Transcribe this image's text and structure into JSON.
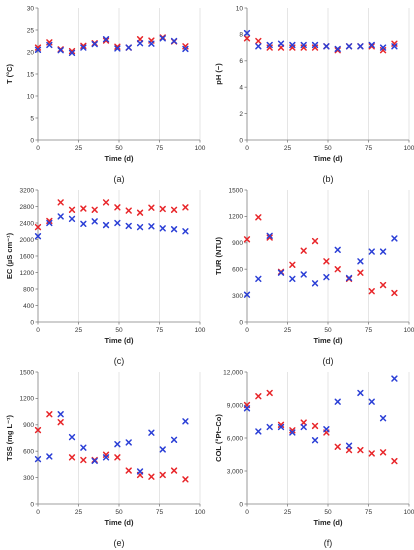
{
  "colors": {
    "red": "#e8262a",
    "blue": "#2b3fd6",
    "grid": "#d4d4d4",
    "axis": "#7f7f7f"
  },
  "chart_data": [
    {
      "type": "scatter",
      "caption": "(a)",
      "xlabel": "Time (d)",
      "ylabel": "T (°C)",
      "xlim": [
        0,
        100
      ],
      "ylim": [
        0,
        30
      ],
      "xticks": [
        0,
        25,
        50,
        75,
        100
      ],
      "yticks": [
        0,
        5,
        10,
        15,
        20,
        25,
        30
      ],
      "ytick_labels": [
        "0",
        "5",
        "10",
        "15",
        "20",
        "25",
        "30"
      ],
      "grid": "vertical",
      "series": [
        {
          "color": "red",
          "x": [
            0,
            7,
            14,
            21,
            28,
            35,
            42,
            49,
            56,
            63,
            70,
            77,
            84,
            91
          ],
          "y": [
            21.0,
            22.2,
            20.6,
            20.2,
            21.4,
            22.0,
            22.6,
            21.2,
            21.0,
            22.9,
            22.6,
            23.3,
            22.4,
            21.3
          ]
        },
        {
          "color": "blue",
          "x": [
            0,
            7,
            14,
            21,
            28,
            35,
            42,
            49,
            56,
            63,
            70,
            77,
            84,
            91
          ],
          "y": [
            20.5,
            21.6,
            20.4,
            19.8,
            21.0,
            21.8,
            22.9,
            20.8,
            21.0,
            22.0,
            21.9,
            23.1,
            22.5,
            20.7
          ]
        }
      ]
    },
    {
      "type": "scatter",
      "caption": "(b)",
      "xlabel": "Time (d)",
      "ylabel": "pH (−)",
      "xlim": [
        0,
        100
      ],
      "ylim": [
        0,
        10
      ],
      "xticks": [
        0,
        25,
        50,
        75,
        100
      ],
      "yticks": [
        0,
        2,
        4,
        6,
        8,
        10
      ],
      "ytick_labels": [
        "0",
        "2",
        "4",
        "6",
        "8",
        "10"
      ],
      "grid": "vertical",
      "series": [
        {
          "color": "red",
          "x": [
            0,
            7,
            14,
            21,
            28,
            35,
            42,
            49,
            56,
            63,
            70,
            77,
            84,
            91
          ],
          "y": [
            7.7,
            7.5,
            7.0,
            7.0,
            7.0,
            7.0,
            7.0,
            7.1,
            6.8,
            7.1,
            7.1,
            7.1,
            6.8,
            7.3
          ]
        },
        {
          "color": "blue",
          "x": [
            0,
            7,
            14,
            21,
            28,
            35,
            42,
            49,
            56,
            63,
            70,
            77,
            84,
            91
          ],
          "y": [
            8.1,
            7.1,
            7.2,
            7.3,
            7.2,
            7.2,
            7.2,
            7.1,
            6.9,
            7.1,
            7.1,
            7.2,
            7.0,
            7.1
          ]
        }
      ]
    },
    {
      "type": "scatter",
      "caption": "(c)",
      "xlabel": "Time (d)",
      "ylabel": "EC (µS cm⁻¹)",
      "xlim": [
        0,
        100
      ],
      "ylim": [
        0,
        3200
      ],
      "xticks": [
        0,
        25,
        50,
        75,
        100
      ],
      "yticks": [
        0,
        400,
        800,
        1200,
        1600,
        2000,
        2400,
        2800,
        3200
      ],
      "ytick_labels": [
        "0",
        "400",
        "800",
        "1200",
        "1600",
        "2000",
        "2400",
        "2800",
        "3200"
      ],
      "grid": "vertical",
      "series": [
        {
          "color": "red",
          "x": [
            0,
            7,
            14,
            21,
            28,
            35,
            42,
            49,
            56,
            63,
            70,
            77,
            84,
            91
          ],
          "y": [
            2300,
            2450,
            2900,
            2720,
            2750,
            2720,
            2900,
            2780,
            2700,
            2650,
            2770,
            2740,
            2720,
            2780
          ]
        },
        {
          "color": "blue",
          "x": [
            0,
            7,
            14,
            21,
            28,
            35,
            42,
            49,
            56,
            63,
            70,
            77,
            84,
            91
          ],
          "y": [
            2080,
            2400,
            2560,
            2500,
            2380,
            2440,
            2350,
            2400,
            2330,
            2300,
            2320,
            2270,
            2250,
            2200
          ]
        }
      ]
    },
    {
      "type": "scatter",
      "caption": "(d)",
      "xlabel": "Time (d)",
      "ylabel": "TUR (NTU)",
      "xlim": [
        0,
        100
      ],
      "ylim": [
        0,
        1500
      ],
      "xticks": [
        0,
        25,
        50,
        75,
        100
      ],
      "yticks": [
        0,
        300,
        600,
        900,
        1200,
        1500
      ],
      "ytick_labels": [
        "0",
        "300",
        "600",
        "900",
        "1200",
        "1500"
      ],
      "grid": "vertical",
      "series": [
        {
          "color": "red",
          "x": [
            0,
            7,
            14,
            21,
            28,
            35,
            42,
            49,
            56,
            63,
            70,
            77,
            84,
            91
          ],
          "y": [
            940,
            1190,
            960,
            570,
            650,
            810,
            920,
            690,
            600,
            490,
            560,
            350,
            420,
            330
          ]
        },
        {
          "color": "blue",
          "x": [
            0,
            7,
            14,
            21,
            28,
            35,
            42,
            49,
            56,
            63,
            70,
            77,
            84,
            91
          ],
          "y": [
            310,
            490,
            980,
            560,
            490,
            540,
            440,
            510,
            820,
            500,
            690,
            800,
            800,
            950
          ]
        }
      ]
    },
    {
      "type": "scatter",
      "caption": "(e)",
      "xlabel": "Time (d)",
      "ylabel": "TSS (mg L⁻¹)",
      "xlim": [
        0,
        100
      ],
      "ylim": [
        0,
        1500
      ],
      "xticks": [
        0,
        25,
        50,
        75,
        100
      ],
      "yticks": [
        0,
        300,
        600,
        900,
        1200,
        1500
      ],
      "ytick_labels": [
        "0",
        "300",
        "600",
        "900",
        "1200",
        "1500"
      ],
      "grid": "vertical",
      "series": [
        {
          "color": "red",
          "x": [
            0,
            7,
            14,
            21,
            28,
            35,
            42,
            49,
            56,
            63,
            70,
            77,
            84,
            91
          ],
          "y": [
            840,
            1020,
            930,
            530,
            500,
            500,
            560,
            530,
            380,
            330,
            310,
            330,
            380,
            280
          ]
        },
        {
          "color": "blue",
          "x": [
            0,
            7,
            14,
            21,
            28,
            35,
            42,
            49,
            56,
            63,
            70,
            77,
            84,
            91
          ],
          "y": [
            510,
            540,
            1020,
            760,
            640,
            490,
            530,
            680,
            700,
            370,
            810,
            620,
            730,
            940
          ]
        }
      ]
    },
    {
      "type": "scatter",
      "caption": "(f)",
      "xlabel": "Time (d)",
      "ylabel": "COL (°Pt−Co)",
      "xlim": [
        0,
        100
      ],
      "ylim": [
        0,
        12000
      ],
      "xticks": [
        0,
        25,
        50,
        75,
        100
      ],
      "yticks": [
        0,
        3000,
        6000,
        9000,
        12000
      ],
      "ytick_labels": [
        "0",
        "3,000",
        "6,000",
        "9,000",
        "12,000"
      ],
      "grid": "vertical",
      "series": [
        {
          "color": "red",
          "x": [
            0,
            7,
            14,
            21,
            28,
            35,
            42,
            49,
            56,
            63,
            70,
            77,
            84,
            91
          ],
          "y": [
            9000,
            9800,
            10100,
            7200,
            6700,
            7400,
            7100,
            6500,
            5200,
            4900,
            4900,
            4600,
            4700,
            3900
          ]
        },
        {
          "color": "blue",
          "x": [
            0,
            7,
            14,
            21,
            28,
            35,
            42,
            49,
            56,
            63,
            70,
            77,
            84,
            91
          ],
          "y": [
            8700,
            6600,
            7000,
            7000,
            6500,
            7000,
            5800,
            6800,
            9300,
            5300,
            10100,
            9300,
            7800,
            11400
          ]
        }
      ]
    }
  ]
}
